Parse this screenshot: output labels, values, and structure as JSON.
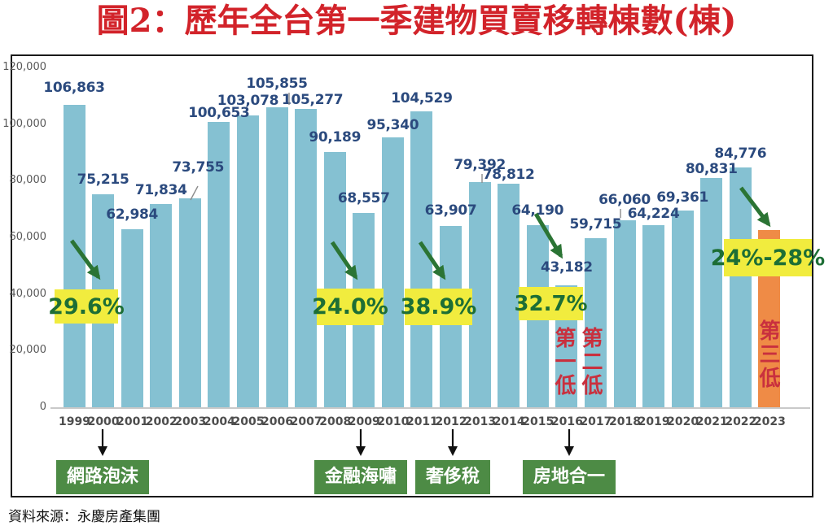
{
  "title": "圖2：歷年全台第一季建物買賣移轉棟數(棟)",
  "source": "資料來源：永慶房產集團",
  "colors": {
    "title_red": "#d2232a",
    "bar_blue": "#85c1d2",
    "bar_orange": "#ef8b46",
    "value_label_navy": "#2b4a7e",
    "year_label_gray": "#4d4d4d",
    "axis_label_gray": "#595959",
    "baseline_gray": "#c9c9c9",
    "drop_box_yellow": "#f1ec3e",
    "drop_text_green": "#1d6e35",
    "arrow_green": "#2b7434",
    "rank_text_red": "#c9303e",
    "event_box_green": "#4d8b45",
    "event_text_white": "#ffffff",
    "leader_line_gray": "#8c8c8c",
    "black": "#111111"
  },
  "chart_data": {
    "type": "bar",
    "title": "圖2：歷年全台第一季建物買賣移轉棟數(棟)",
    "xlabel": "",
    "ylabel": "",
    "ylim": [
      0,
      120000
    ],
    "grid": false,
    "legend": "none",
    "yticks": [
      0,
      20000,
      40000,
      60000,
      80000,
      100000,
      120000
    ],
    "ytick_labels": [
      "0",
      "20,000",
      "40,000",
      "60,000",
      "80,000",
      "100,000",
      "120,000"
    ],
    "categories": [
      "1999",
      "2000",
      "2001",
      "2002",
      "2003",
      "2004",
      "2005",
      "2006",
      "2007",
      "2008",
      "2009",
      "2010",
      "2011",
      "2012",
      "2013",
      "2014",
      "2015",
      "2016",
      "2017",
      "2018",
      "2019",
      "2020",
      "2021",
      "2022",
      "2023"
    ],
    "series": [
      {
        "name": "第一季建物買賣移轉棟數",
        "values": [
          106863,
          75215,
          62984,
          71834,
          73755,
          100653,
          103078,
          105855,
          105277,
          90189,
          68557,
          95340,
          104529,
          63907,
          79392,
          78812,
          64190,
          43182,
          59715,
          66060,
          64224,
          69361,
          80831,
          84776,
          null
        ]
      }
    ],
    "value_labels": [
      "106,863",
      "75,215",
      "62,984",
      "71,834",
      "73,755",
      "100,653",
      "103,078",
      "105,855",
      "105,277",
      "90,189",
      "68,557",
      "95,340",
      "104,529",
      "63,907",
      "79,392",
      "78,812",
      "64,190",
      "43,182",
      "59,715",
      "66,060",
      "64,224",
      "69,361",
      "80,831",
      "84,776",
      ""
    ],
    "highlight_bar": {
      "year": "2023",
      "color": "#ef8b46",
      "estimated_value": 62600,
      "note": "2023 bar unlabeled; shown as 24%-28% decline vs 2022"
    },
    "drop_annotations": [
      {
        "label": "29.6%",
        "from": "1999",
        "to": "2000"
      },
      {
        "label": "24.0%",
        "from": "2008",
        "to": "2009"
      },
      {
        "label": "38.9%",
        "from": "2011",
        "to": "2012"
      },
      {
        "label": "32.7%",
        "from": "2015",
        "to": "2016"
      },
      {
        "label": "24%-28%",
        "from": "2022",
        "to": "2023"
      }
    ],
    "rank_annotations": [
      {
        "label": "第一低",
        "year": "2016"
      },
      {
        "label": "第二低",
        "year": "2017"
      },
      {
        "label": "第三低",
        "year": "2023"
      }
    ],
    "event_annotations": [
      {
        "label": "網路泡沫",
        "year": "2000"
      },
      {
        "label": "金融海嘯",
        "year": "2009"
      },
      {
        "label": "奢侈稅",
        "year": "2012"
      },
      {
        "label": "房地合一",
        "year": "2016"
      }
    ]
  }
}
